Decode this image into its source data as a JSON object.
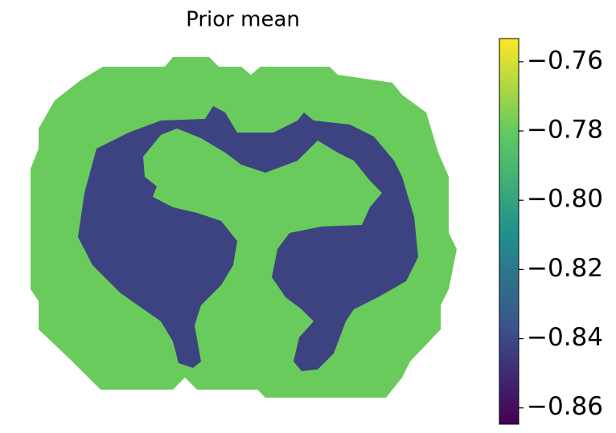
{
  "chart_data": {
    "type": "heatmap",
    "title": "Prior mean",
    "values": [
      -0.779,
      -0.842
    ],
    "colormap": "viridis",
    "clim": [
      -0.8647,
      -0.7533
    ],
    "cticks": [
      {
        "value": -0.76,
        "label": "−0.76"
      },
      {
        "value": -0.78,
        "label": "−0.78"
      },
      {
        "value": -0.8,
        "label": "−0.80"
      },
      {
        "value": -0.82,
        "label": "−0.82"
      },
      {
        "value": -0.84,
        "label": "−0.84"
      },
      {
        "value": -0.86,
        "label": "−0.86"
      }
    ]
  }
}
